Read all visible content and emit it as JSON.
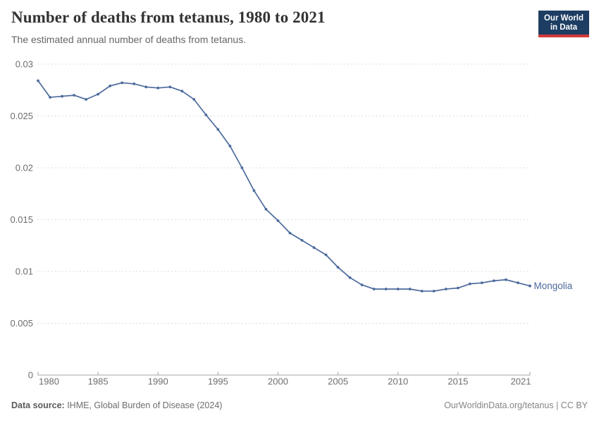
{
  "header": {
    "title": "Number of deaths from tetanus, 1980 to 2021",
    "subtitle": "The estimated annual number of deaths from tetanus."
  },
  "logo": {
    "line1": "Our World",
    "line2": "in Data",
    "bg_color": "#1d3d63",
    "accent_color": "#d13b3b"
  },
  "footer": {
    "source_label": "Data source:",
    "source_value": " IHME, Global Burden of Disease (2024)",
    "credit": "OurWorldinData.org/tetanus | CC BY"
  },
  "chart_data": {
    "type": "line",
    "title": "Number of deaths from tetanus, 1980 to 2021",
    "subtitle": "The estimated annual number of deaths from tetanus.",
    "xlabel": "",
    "ylabel": "",
    "xlim": [
      1980,
      2021
    ],
    "ylim": [
      0,
      0.03
    ],
    "grid": "horizontal-dashed",
    "legend_position": "end-of-line-label",
    "xticks": [
      1980,
      1985,
      1990,
      1995,
      2000,
      2005,
      2010,
      2015,
      2021
    ],
    "yticks": [
      0,
      0.005,
      0.01,
      0.015,
      0.02,
      0.025,
      0.03
    ],
    "ytick_labels": [
      "0",
      "0.005",
      "0.01",
      "0.015",
      "0.02",
      "0.025",
      "0.03"
    ],
    "x": [
      1980,
      1981,
      1982,
      1983,
      1984,
      1985,
      1986,
      1987,
      1988,
      1989,
      1990,
      1991,
      1992,
      1993,
      1994,
      1995,
      1996,
      1997,
      1998,
      1999,
      2000,
      2001,
      2002,
      2003,
      2004,
      2005,
      2006,
      2007,
      2008,
      2009,
      2010,
      2011,
      2012,
      2013,
      2014,
      2015,
      2016,
      2017,
      2018,
      2019,
      2020,
      2021
    ],
    "series": [
      {
        "name": "Mongolia",
        "color": "#4C6A9C",
        "values": [
          0.0284,
          0.0268,
          0.0269,
          0.027,
          0.0266,
          0.0271,
          0.0279,
          0.0282,
          0.0281,
          0.0278,
          0.0277,
          0.0278,
          0.0274,
          0.0266,
          0.0251,
          0.0237,
          0.0221,
          0.02,
          0.0178,
          0.016,
          0.0149,
          0.0137,
          0.013,
          0.0123,
          0.0116,
          0.0104,
          0.0094,
          0.0087,
          0.0083,
          0.0083,
          0.0083,
          0.0083,
          0.0081,
          0.0081,
          0.0083,
          0.0084,
          0.0088,
          0.0089,
          0.0091,
          0.0092,
          0.0089,
          0.0086
        ]
      }
    ],
    "colors": {
      "line": "#4C6A9C",
      "gridline": "#dddddd",
      "axis": "#a3a3a3",
      "tick_label": "#6e6e6e",
      "entity_label": "#4C6A9C"
    }
  }
}
